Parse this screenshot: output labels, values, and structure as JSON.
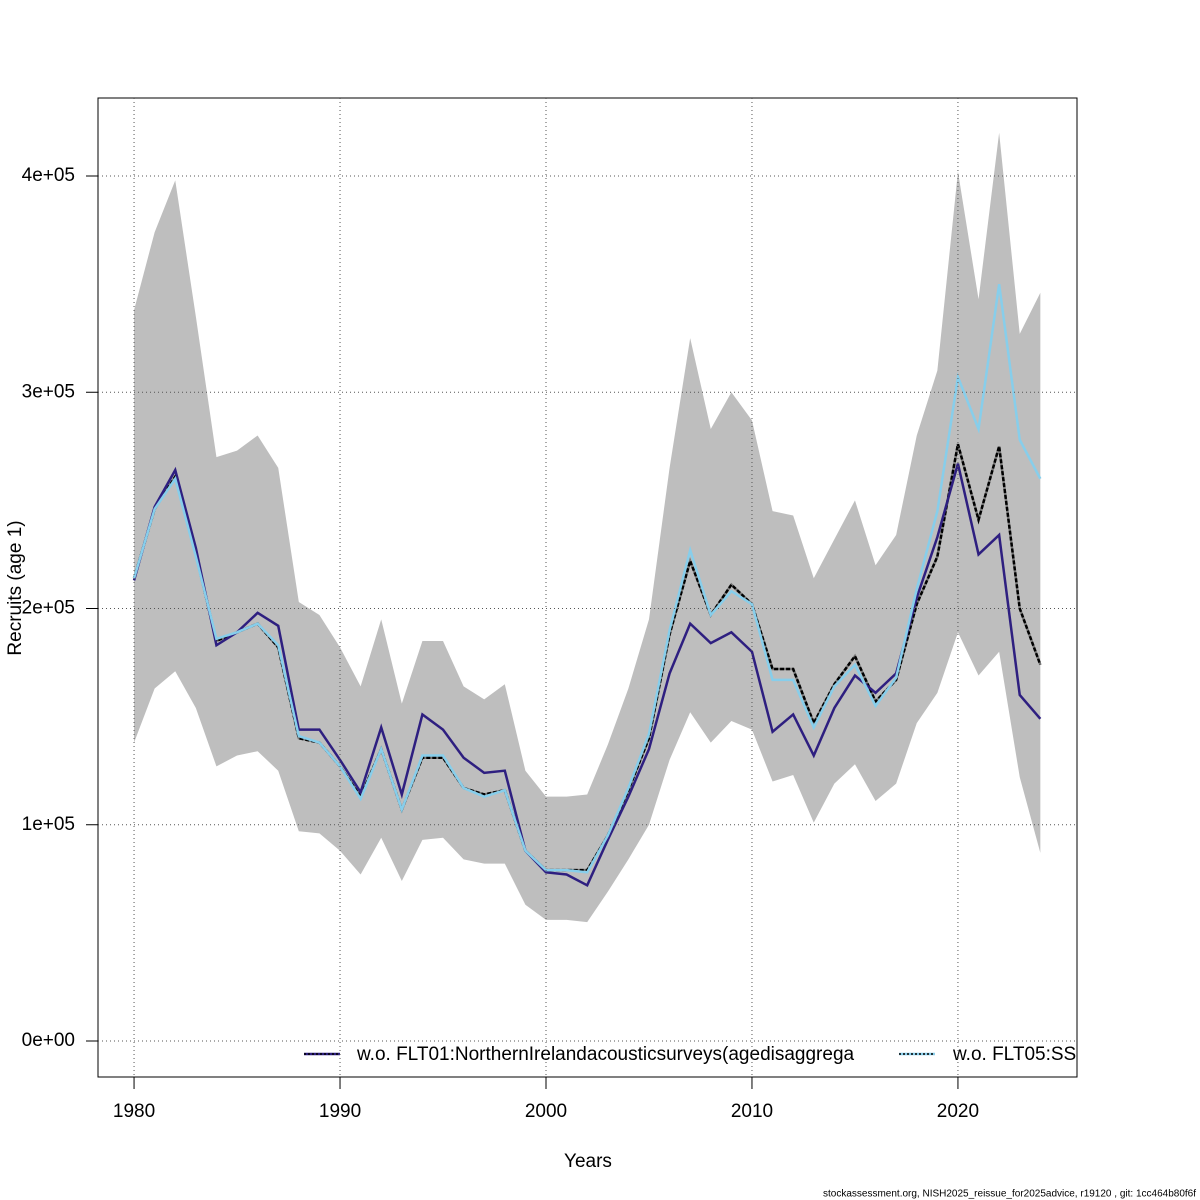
{
  "chart_data": {
    "type": "line",
    "x_label": "Years",
    "y_label": "Recruits (age 1)",
    "footer": "stockassessment.org, NISH2025_reissue_for2025advice, r19120 , git: 1cc464b80f6f",
    "x": [
      1980,
      1981,
      1982,
      1983,
      1984,
      1985,
      1986,
      1987,
      1988,
      1989,
      1990,
      1991,
      1992,
      1993,
      1994,
      1995,
      1996,
      1997,
      1998,
      1999,
      2000,
      2001,
      2002,
      2003,
      2004,
      2005,
      2006,
      2007,
      2008,
      2009,
      2010,
      2011,
      2012,
      2013,
      2014,
      2015,
      2016,
      2017,
      2018,
      2019,
      2020,
      2021,
      2022,
      2023,
      2024
    ],
    "band": {
      "color": "#bebebe",
      "lower": [
        138000,
        163000,
        171000,
        154000,
        127000,
        132000,
        134000,
        125000,
        97000,
        96000,
        88000,
        77000,
        94000,
        74000,
        93000,
        94000,
        84000,
        82000,
        82000,
        63000,
        56000,
        56000,
        55000,
        69000,
        84000,
        100000,
        130000,
        152000,
        138000,
        148000,
        144000,
        120000,
        123000,
        101000,
        119000,
        128000,
        111000,
        119000,
        147000,
        161000,
        189000,
        169000,
        180000,
        122000,
        87000
      ],
      "upper": [
        338000,
        374000,
        398000,
        335000,
        270000,
        273000,
        280000,
        265000,
        203000,
        197000,
        182000,
        164000,
        195000,
        156000,
        185000,
        185000,
        164000,
        158000,
        165000,
        125000,
        113000,
        113000,
        114000,
        137000,
        163000,
        195000,
        265000,
        325000,
        283000,
        300000,
        287000,
        245000,
        243000,
        214000,
        232000,
        250000,
        220000,
        234000,
        280000,
        310000,
        402000,
        343000,
        420000,
        327000,
        346000
      ]
    },
    "series": [
      {
        "color": "#000000",
        "values": [
          214000,
          246000,
          261000,
          225000,
          185000,
          189000,
          193000,
          182000,
          140000,
          138000,
          127000,
          113000,
          135000,
          107000,
          131000,
          131000,
          117000,
          114000,
          116000,
          88000,
          79000,
          79000,
          79000,
          95000,
          116000,
          140000,
          188000,
          222000,
          197000,
          211000,
          202000,
          172000,
          172000,
          147000,
          165000,
          178000,
          157000,
          167000,
          202000,
          224000,
          276000,
          241000,
          275000,
          200000,
          174000
        ]
      },
      {
        "name": "w.o. FLT01:NorthernIrelandacousticsurveys(agedisaggrega",
        "color": "#2e1f80",
        "values": [
          213000,
          247000,
          264000,
          228000,
          183000,
          189000,
          198000,
          192000,
          144000,
          144000,
          130000,
          115000,
          145000,
          114000,
          151000,
          144000,
          131000,
          124000,
          125000,
          88000,
          78000,
          77000,
          72000,
          93000,
          113000,
          135000,
          170000,
          193000,
          184000,
          189000,
          180000,
          143000,
          151000,
          132000,
          154000,
          169000,
          161000,
          170000,
          205000,
          233000,
          267000,
          225000,
          234000,
          160000,
          149000
        ]
      },
      {
        "name": "w.o. FLT05:SS",
        "color": "#87ceeb",
        "values": [
          214000,
          246000,
          260000,
          224000,
          186000,
          189000,
          193000,
          183000,
          141000,
          138000,
          127000,
          112000,
          135000,
          107000,
          132000,
          132000,
          117000,
          113000,
          116000,
          88000,
          79000,
          79000,
          78000,
          95000,
          117000,
          142000,
          190000,
          227000,
          197000,
          208000,
          202000,
          167000,
          167000,
          145000,
          164000,
          174000,
          155000,
          168000,
          209000,
          245000,
          307000,
          283000,
          350000,
          278000,
          260000
        ]
      }
    ],
    "xlim": [
      1978.25,
      2025.78
    ],
    "ylim": [
      -16647,
      436069
    ],
    "xticks": [
      1980,
      1990,
      2000,
      2010,
      2020
    ],
    "yticks": [
      {
        "value": 0,
        "label": "0e+00"
      },
      {
        "value": 100000,
        "label": "1e+05"
      },
      {
        "value": 200000,
        "label": "2e+05"
      },
      {
        "value": 300000,
        "label": "3e+05"
      },
      {
        "value": 400000,
        "label": "4e+05"
      }
    ],
    "grid": true
  }
}
